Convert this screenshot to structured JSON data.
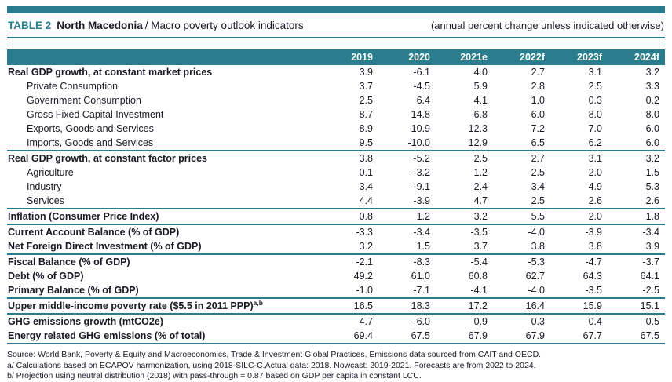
{
  "colors": {
    "accent_teal": "#2A7D8C",
    "ink": "#1A1A26",
    "header_text": "#FFFFFF"
  },
  "header": {
    "table_label": "TABLE 2",
    "country": "North Macedonia",
    "subtitle": "/ Macro poverty outlook indicators",
    "note": "(annual percent change unless indicated otherwise)"
  },
  "table": {
    "columns": [
      "2019",
      "2020",
      "2021e",
      "2022f",
      "2023f",
      "2024f"
    ],
    "rows": [
      {
        "label": "Real GDP growth, at constant market prices",
        "bold": true,
        "indent": false,
        "values": [
          "3.9",
          "-6.1",
          "4.0",
          "2.7",
          "3.1",
          "3.2"
        ],
        "separator_after": false
      },
      {
        "label": "Private Consumption",
        "bold": false,
        "indent": true,
        "values": [
          "3.7",
          "-4.5",
          "5.9",
          "2.8",
          "2.5",
          "3.3"
        ],
        "separator_after": false
      },
      {
        "label": "Government Consumption",
        "bold": false,
        "indent": true,
        "values": [
          "2.5",
          "6.4",
          "4.1",
          "1.0",
          "0.3",
          "0.2"
        ],
        "separator_after": false
      },
      {
        "label": "Gross Fixed Capital Investment",
        "bold": false,
        "indent": true,
        "values": [
          "8.7",
          "-14.8",
          "6.8",
          "6.0",
          "8.0",
          "8.0"
        ],
        "separator_after": false
      },
      {
        "label": "Exports, Goods and Services",
        "bold": false,
        "indent": true,
        "values": [
          "8.9",
          "-10.9",
          "12.3",
          "7.2",
          "7.0",
          "6.0"
        ],
        "separator_after": false
      },
      {
        "label": "Imports, Goods and Services",
        "bold": false,
        "indent": true,
        "values": [
          "9.5",
          "-10.0",
          "12.9",
          "6.5",
          "6.2",
          "6.0"
        ],
        "separator_after": true
      },
      {
        "label": "Real GDP growth, at constant factor prices",
        "bold": true,
        "indent": false,
        "values": [
          "3.8",
          "-5.2",
          "2.5",
          "2.7",
          "3.1",
          "3.2"
        ],
        "separator_after": false
      },
      {
        "label": "Agriculture",
        "bold": false,
        "indent": true,
        "values": [
          "0.1",
          "-3.2",
          "-1.2",
          "2.5",
          "2.0",
          "1.5"
        ],
        "separator_after": false
      },
      {
        "label": "Industry",
        "bold": false,
        "indent": true,
        "values": [
          "3.4",
          "-9.1",
          "-2.4",
          "3.4",
          "4.9",
          "5.3"
        ],
        "separator_after": false
      },
      {
        "label": "Services",
        "bold": false,
        "indent": true,
        "values": [
          "4.4",
          "-3.9",
          "4.7",
          "2.5",
          "2.6",
          "2.6"
        ],
        "separator_after": true
      },
      {
        "label": "Inflation (Consumer Price Index)",
        "bold": true,
        "indent": false,
        "values": [
          "0.8",
          "1.2",
          "3.2",
          "5.5",
          "2.0",
          "1.8"
        ],
        "separator_after": true
      },
      {
        "label": "Current Account Balance (% of GDP)",
        "bold": true,
        "indent": false,
        "values": [
          "-3.3",
          "-3.4",
          "-3.5",
          "-4.0",
          "-3.9",
          "-3.4"
        ],
        "separator_after": false
      },
      {
        "label": "Net Foreign Direct Investment (% of GDP)",
        "bold": true,
        "indent": false,
        "values": [
          "3.2",
          "1.5",
          "3.7",
          "3.8",
          "3.8",
          "3.9"
        ],
        "separator_after": true
      },
      {
        "label": "Fiscal Balance (% of GDP)",
        "bold": true,
        "indent": false,
        "values": [
          "-2.1",
          "-8.3",
          "-5.4",
          "-5.3",
          "-4.7",
          "-3.7"
        ],
        "separator_after": false
      },
      {
        "label": "Debt (% of GDP)",
        "bold": true,
        "indent": false,
        "values": [
          "49.2",
          "61.0",
          "60.8",
          "62.7",
          "64.3",
          "64.1"
        ],
        "separator_after": false
      },
      {
        "label": "Primary Balance (% of GDP)",
        "bold": true,
        "indent": false,
        "values": [
          "-1.0",
          "-7.1",
          "-4.1",
          "-4.0",
          "-3.5",
          "-2.5"
        ],
        "separator_after": true
      },
      {
        "label": "Upper middle-income poverty rate ($5.5 in 2011 PPP)",
        "superscript": "a,b",
        "bold": true,
        "indent": false,
        "values": [
          "16.5",
          "18.3",
          "17.2",
          "16.4",
          "15.9",
          "15.1"
        ],
        "separator_after": true
      },
      {
        "label": "GHG emissions growth (mtCO2e)",
        "bold": true,
        "indent": false,
        "values": [
          "4.7",
          "-6.0",
          "0.9",
          "0.3",
          "0.4",
          "0.5"
        ],
        "separator_after": false
      },
      {
        "label": "Energy related GHG emissions (% of total)",
        "bold": true,
        "indent": false,
        "values": [
          "69.4",
          "67.5",
          "67.9",
          "67.9",
          "67.7",
          "67.5"
        ],
        "separator_after": true
      }
    ]
  },
  "footnotes": [
    "Source: World Bank, Poverty & Equity and Macroeconomics, Trade & Investment Global Practices. Emissions data sourced from CAIT and OECD.",
    "a/ Calculations based on ECAPOV harmonization, using 2018-SILC-C.Actual data: 2018. Nowcast: 2019-2021. Forecasts are from 2022 to 2024.",
    "b/ Projection using neutral distribution (2018) with pass-through = 0.87 based on GDP per capita in constant LCU."
  ]
}
